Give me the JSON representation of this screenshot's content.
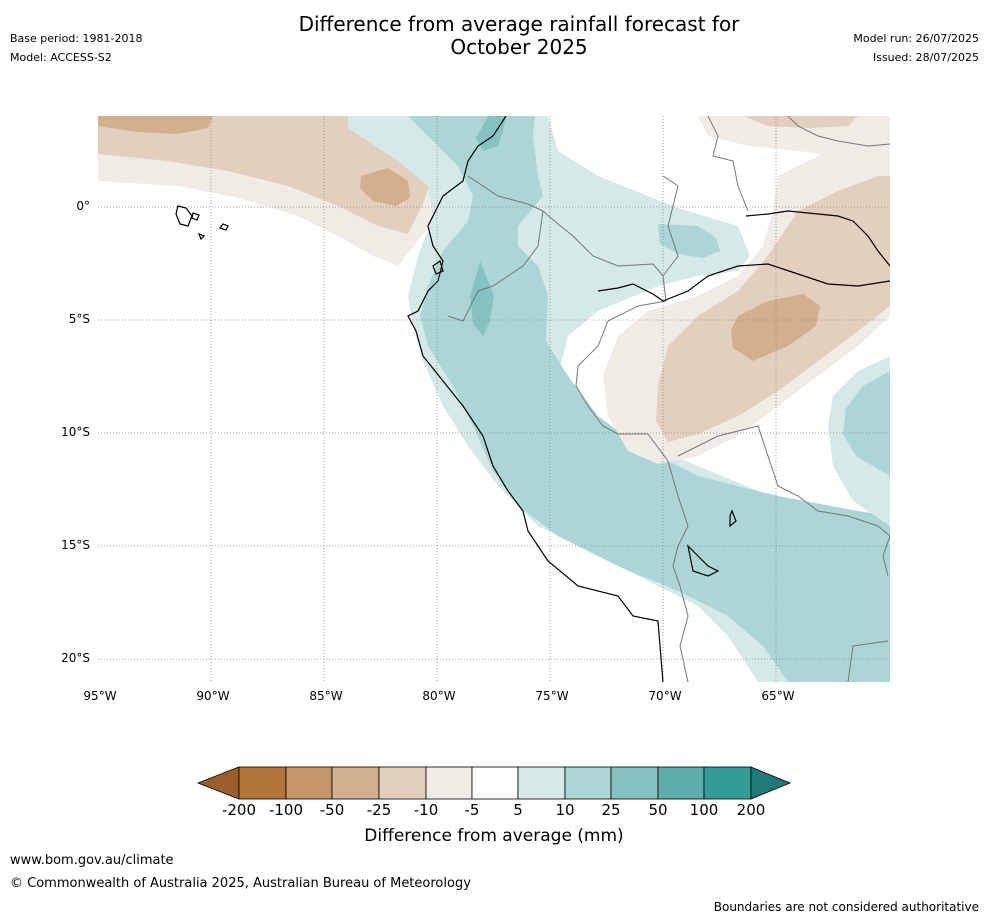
{
  "header": {
    "title_line1": "Difference from average rainfall forecast for",
    "title_line2": "October 2025",
    "base_period": "Base period: 1981-2018",
    "model": "Model: ACCESS-S2",
    "model_run": "Model run: 26/07/2025",
    "issued": "Issued: 28/07/2025"
  },
  "map": {
    "lat_labels": [
      "0°",
      "5°S",
      "10°S",
      "15°S",
      "20°S"
    ],
    "lon_labels": [
      "95°W",
      "90°W",
      "85°W",
      "80°W",
      "75°W",
      "70°W",
      "65°W"
    ],
    "colors": {
      "brown_200": "#9a5e2a",
      "brown_100": "#b07538",
      "brown_50": "#c4956a",
      "brown_25": "#d2af8e",
      "brown_10": "#e2cfbd",
      "brown_5": "#f0ebe5",
      "white": "#ffffff",
      "teal_5": "#d4e9e8",
      "teal_10": "#acd6d6",
      "teal_25": "#86c2c1",
      "teal_50": "#5eadab",
      "teal_100": "#339c97",
      "teal_200": "#1f7a77"
    }
  },
  "chart_data": {
    "type": "heatmap",
    "title": "Difference from average rainfall forecast for October 2025",
    "colorbar_label": "Difference from average (mm)",
    "colorbar_ticks": [
      "-200",
      "-100",
      "-50",
      "-25",
      "-10",
      "-5",
      "5",
      "10",
      "25",
      "50",
      "100",
      "200"
    ],
    "lon_range": [
      -95,
      -60
    ],
    "lat_range": [
      -21,
      4
    ]
  },
  "footer": {
    "website": "www.bom.gov.au/climate",
    "copyright": "© Commonwealth of Australia 2025, Australian Bureau of Meteorology",
    "disclaimer": "Boundaries are not considered authoritative"
  }
}
